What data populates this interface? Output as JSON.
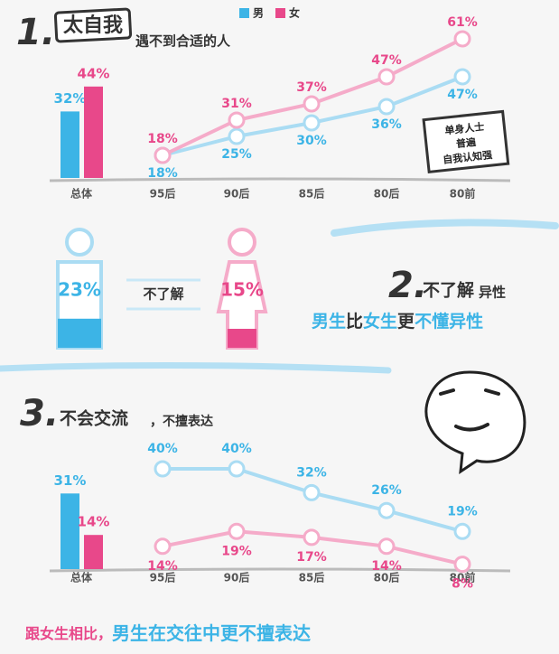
{
  "chart_data": [
    {
      "type": "bar",
      "number": "1.",
      "title": "太自我",
      "subtitle": "遇不到合适的人",
      "categories": [
        "总体"
      ],
      "series": [
        {
          "name": "男",
          "color": "#3cb4e6",
          "values": [
            32
          ],
          "value_labels": [
            "32%"
          ]
        },
        {
          "name": "女",
          "color": "#e8488a",
          "values": [
            44
          ],
          "value_labels": [
            "44%"
          ]
        }
      ]
    },
    {
      "type": "line",
      "categories": [
        "95后",
        "90后",
        "85后",
        "80后",
        "80前"
      ],
      "annotation": [
        "单身人士",
        "普遍",
        "自我认知强"
      ],
      "series": [
        {
          "color": "#3cb4e6",
          "values": [
            18,
            25,
            30,
            36,
            47
          ],
          "value_labels": [
            "18%",
            "25%",
            "30%",
            "36%",
            "47%"
          ]
        },
        {
          "color": "#e8488a",
          "values": [
            18,
            31,
            37,
            47,
            61
          ],
          "value_labels": [
            "18%",
            "31%",
            "37%",
            "47%",
            "61%"
          ]
        }
      ]
    },
    {
      "type": "pictogram",
      "number": "2.",
      "title": "不了解",
      "title_suffix": "异性",
      "label": "不了解",
      "subtitle": [
        {
          "text": "男生",
          "color": "#3cb4e6"
        },
        {
          "text": "比",
          "color": "#333333"
        },
        {
          "text": "女生",
          "color": "#3cb4e6"
        },
        {
          "text": "更",
          "color": "#333333"
        },
        {
          "text": "不懂异性",
          "color": "#3cb4e6"
        }
      ],
      "series": [
        {
          "color": "#3cb4e6",
          "values": [
            23
          ],
          "value_labels": [
            "23%"
          ]
        },
        {
          "color": "#e8488a",
          "values": [
            15
          ],
          "value_labels": [
            "15%"
          ]
        }
      ]
    },
    {
      "type": "bar",
      "number": "3.",
      "title": "不会交流",
      "subtitle": "，不擅表达",
      "categories": [
        "总体"
      ],
      "series": [
        {
          "color": "#3cb4e6",
          "values": [
            31
          ],
          "value_labels": [
            "31%"
          ]
        },
        {
          "color": "#e8488a",
          "values": [
            14
          ],
          "value_labels": [
            "14%"
          ]
        }
      ]
    },
    {
      "type": "line",
      "categories": [
        "95后",
        "90后",
        "85后",
        "80后",
        "80前"
      ],
      "footer": [
        {
          "text": "跟女生相比，",
          "color": "#e8488a"
        },
        {
          "text": "男生在交往中更不擅表达",
          "color": "#3cb4e6"
        }
      ],
      "series": [
        {
          "color": "#3cb4e6",
          "values": [
            40,
            40,
            32,
            26,
            19
          ],
          "value_labels": [
            "40%",
            "40%",
            "32%",
            "26%",
            "19%"
          ]
        },
        {
          "color": "#e8488a",
          "values": [
            14,
            19,
            17,
            14,
            8
          ],
          "value_labels": [
            "14%",
            "19%",
            "17%",
            "14%",
            "8%"
          ]
        }
      ]
    }
  ]
}
